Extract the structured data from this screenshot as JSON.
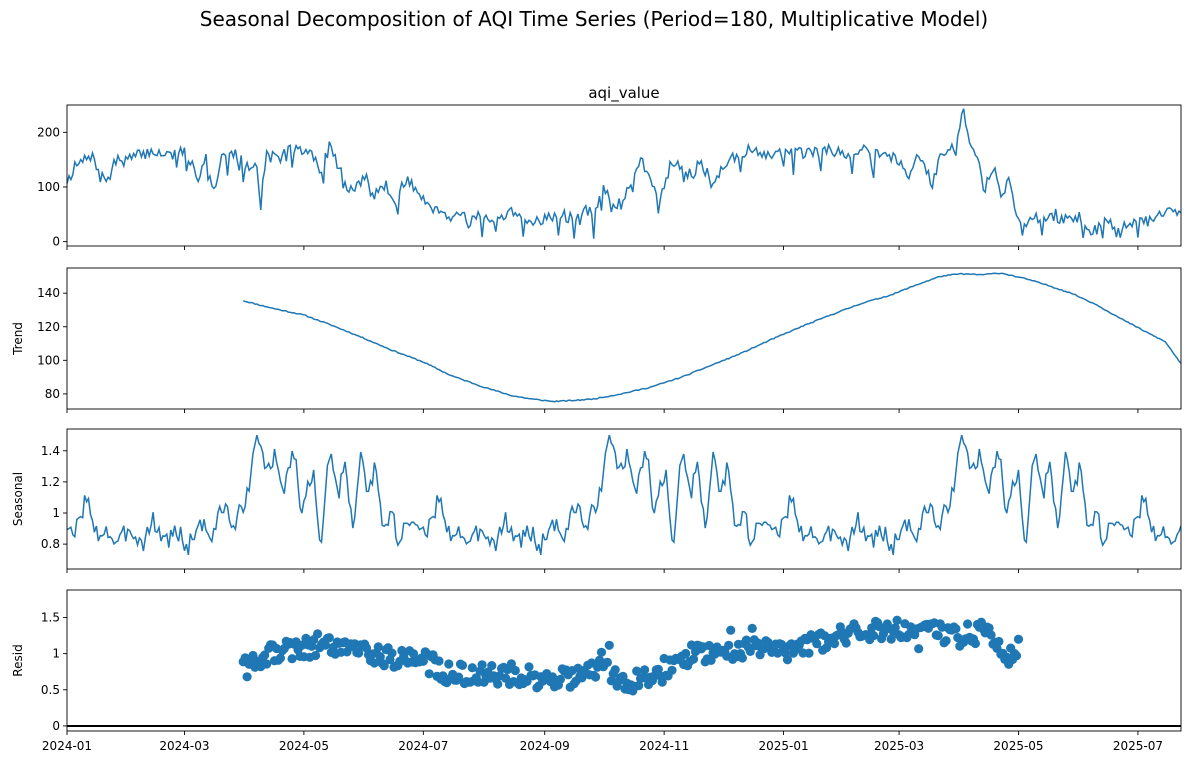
{
  "suptitle": "Seasonal Decomposition of AQI Time Series (Period=180, Multiplicative Model)",
  "line_color": "#1f77b4",
  "zero_line_color": "#000000",
  "chart_data": [
    {
      "type": "line",
      "title": "aqi_value",
      "ylabel": "",
      "xlim": [
        "2024-01-01",
        "2025-07-23"
      ],
      "ylim": [
        -8,
        250
      ],
      "yticks": [
        0,
        100,
        200
      ],
      "grid": false,
      "series": [
        {
          "anchors": [
            [
              "2024-01-01",
              112
            ],
            [
              "2024-01-05",
              135
            ],
            [
              "2024-01-10",
              150
            ],
            [
              "2024-01-15",
              152
            ],
            [
              "2024-01-18",
              118
            ],
            [
              "2024-01-22",
              113
            ],
            [
              "2024-01-26",
              148
            ],
            [
              "2024-02-01",
              150
            ],
            [
              "2024-02-08",
              160
            ],
            [
              "2024-02-15",
              165
            ],
            [
              "2024-02-22",
              158
            ],
            [
              "2024-03-01",
              165
            ],
            [
              "2024-03-05",
              140
            ],
            [
              "2024-03-08",
              118
            ],
            [
              "2024-03-12",
              160
            ],
            [
              "2024-03-16",
              92
            ],
            [
              "2024-03-20",
              162
            ],
            [
              "2024-03-28",
              158
            ],
            [
              "2024-04-02",
              135
            ],
            [
              "2024-04-06",
              150
            ],
            [
              "2024-04-09",
              82
            ],
            [
              "2024-04-12",
              158
            ],
            [
              "2024-04-18",
              152
            ],
            [
              "2024-04-24",
              170
            ],
            [
              "2024-04-30",
              165
            ],
            [
              "2024-05-05",
              162
            ],
            [
              "2024-05-10",
              128
            ],
            [
              "2024-05-14",
              175
            ],
            [
              "2024-05-18",
              145
            ],
            [
              "2024-05-24",
              92
            ],
            [
              "2024-05-28",
              100
            ],
            [
              "2024-06-01",
              120
            ],
            [
              "2024-06-06",
              88
            ],
            [
              "2024-06-12",
              102
            ],
            [
              "2024-06-17",
              72
            ],
            [
              "2024-06-22",
              115
            ],
            [
              "2024-06-28",
              90
            ],
            [
              "2024-07-05",
              65
            ],
            [
              "2024-07-10",
              58
            ],
            [
              "2024-07-15",
              45
            ],
            [
              "2024-07-20",
              52
            ],
            [
              "2024-07-25",
              38
            ],
            [
              "2024-07-30",
              55
            ],
            [
              "2024-08-05",
              28
            ],
            [
              "2024-08-10",
              40
            ],
            [
              "2024-08-15",
              52
            ],
            [
              "2024-08-22",
              35
            ],
            [
              "2024-08-28",
              40
            ],
            [
              "2024-09-03",
              45
            ],
            [
              "2024-09-10",
              52
            ],
            [
              "2024-09-16",
              38
            ],
            [
              "2024-09-22",
              60
            ],
            [
              "2024-09-26",
              45
            ],
            [
              "2024-10-01",
              110
            ],
            [
              "2024-10-05",
              55
            ],
            [
              "2024-10-10",
              80
            ],
            [
              "2024-10-14",
              95
            ],
            [
              "2024-10-20",
              148
            ],
            [
              "2024-10-26",
              110
            ],
            [
              "2024-10-30",
              82
            ],
            [
              "2024-11-05",
              150
            ],
            [
              "2024-11-10",
              140
            ],
            [
              "2024-11-15",
              118
            ],
            [
              "2024-11-20",
              148
            ],
            [
              "2024-11-26",
              100
            ],
            [
              "2024-12-01",
              140
            ],
            [
              "2024-12-08",
              160
            ],
            [
              "2024-12-15",
              168
            ],
            [
              "2024-12-22",
              155
            ],
            [
              "2024-12-29",
              162
            ],
            [
              "2025-01-05",
              165
            ],
            [
              "2025-01-12",
              160
            ],
            [
              "2025-01-19",
              165
            ],
            [
              "2025-01-26",
              168
            ],
            [
              "2025-02-02",
              162
            ],
            [
              "2025-02-09",
              170
            ],
            [
              "2025-02-16",
              165
            ],
            [
              "2025-02-23",
              160
            ],
            [
              "2025-03-01",
              148
            ],
            [
              "2025-03-06",
              122
            ],
            [
              "2025-03-10",
              160
            ],
            [
              "2025-03-14",
              142
            ],
            [
              "2025-03-18",
              98
            ],
            [
              "2025-03-22",
              160
            ],
            [
              "2025-03-26",
              175
            ],
            [
              "2025-03-30",
              160
            ],
            [
              "2025-04-01",
              218
            ],
            [
              "2025-04-03",
              235
            ],
            [
              "2025-04-06",
              180
            ],
            [
              "2025-04-10",
              152
            ],
            [
              "2025-04-14",
              100
            ],
            [
              "2025-04-18",
              138
            ],
            [
              "2025-04-22",
              88
            ],
            [
              "2025-04-26",
              110
            ],
            [
              "2025-04-30",
              48
            ],
            [
              "2025-05-03",
              22
            ],
            [
              "2025-05-08",
              48
            ],
            [
              "2025-05-13",
              30
            ],
            [
              "2025-05-18",
              55
            ],
            [
              "2025-05-24",
              38
            ],
            [
              "2025-06-01",
              45
            ],
            [
              "2025-06-08",
              18
            ],
            [
              "2025-06-15",
              35
            ],
            [
              "2025-06-22",
              30
            ],
            [
              "2025-06-30",
              40
            ],
            [
              "2025-07-08",
              35
            ],
            [
              "2025-07-15",
              55
            ],
            [
              "2025-07-18",
              60
            ],
            [
              "2025-07-23",
              45
            ]
          ]
        }
      ]
    },
    {
      "type": "line",
      "title": "",
      "ylabel": "Trend",
      "xlim": [
        "2024-01-01",
        "2025-07-23"
      ],
      "ylim": [
        71,
        155
      ],
      "yticks": [
        80,
        100,
        120,
        140
      ],
      "grid": false,
      "series": [
        {
          "anchors": [
            [
              "2024-03-31",
              135.5
            ],
            [
              "2024-04-15",
              131
            ],
            [
              "2024-05-01",
              127
            ],
            [
              "2024-05-15",
              121
            ],
            [
              "2024-06-01",
              113
            ],
            [
              "2024-06-15",
              106
            ],
            [
              "2024-07-01",
              99
            ],
            [
              "2024-07-15",
              91
            ],
            [
              "2024-08-01",
              84
            ],
            [
              "2024-08-15",
              79
            ],
            [
              "2024-08-25",
              77
            ],
            [
              "2024-09-05",
              75.5
            ],
            [
              "2024-09-15",
              76
            ],
            [
              "2024-09-26",
              77
            ],
            [
              "2024-10-10",
              80
            ],
            [
              "2024-10-25",
              84
            ],
            [
              "2024-11-10",
              90
            ],
            [
              "2024-11-25",
              97
            ],
            [
              "2024-12-10",
              104
            ],
            [
              "2024-12-25",
              112
            ],
            [
              "2025-01-10",
              120
            ],
            [
              "2025-01-25",
              127
            ],
            [
              "2025-02-10",
              134
            ],
            [
              "2025-02-25",
              139
            ],
            [
              "2025-03-10",
              145
            ],
            [
              "2025-03-22",
              150
            ],
            [
              "2025-04-01",
              151.5
            ],
            [
              "2025-04-12",
              151
            ],
            [
              "2025-04-22",
              152
            ],
            [
              "2025-05-05",
              148.5
            ],
            [
              "2025-05-15",
              145
            ],
            [
              "2025-05-28",
              140
            ],
            [
              "2025-06-10",
              133
            ],
            [
              "2025-06-22",
              125
            ],
            [
              "2025-07-05",
              117
            ],
            [
              "2025-07-15",
              111
            ],
            [
              "2025-07-23",
              98
            ]
          ]
        }
      ]
    },
    {
      "type": "line",
      "title": "",
      "ylabel": "Seasonal",
      "xlim": [
        "2024-01-01",
        "2025-07-23"
      ],
      "ylim": [
        0.64,
        1.54
      ],
      "yticks": [
        0.8,
        1.0,
        1.2,
        1.4
      ],
      "grid": false,
      "period_days": 180,
      "series": [
        {
          "one_period_anchors": [
            [
              0,
              0.93
            ],
            [
              3,
              0.82
            ],
            [
              6,
              0.95
            ],
            [
              10,
              1.12
            ],
            [
              14,
              0.85
            ],
            [
              20,
              0.9
            ],
            [
              26,
              0.78
            ],
            [
              32,
              0.92
            ],
            [
              38,
              0.8
            ],
            [
              44,
              0.95
            ],
            [
              50,
              0.82
            ],
            [
              56,
              0.88
            ],
            [
              62,
              0.78
            ],
            [
              68,
              0.95
            ],
            [
              74,
              0.85
            ],
            [
              80,
              1.05
            ],
            [
              86,
              0.9
            ],
            [
              92,
              1.15
            ],
            [
              98,
              1.5
            ],
            [
              102,
              1.25
            ],
            [
              106,
              1.35
            ],
            [
              110,
              1.15
            ],
            [
              116,
              1.4
            ],
            [
              120,
              1.0
            ],
            [
              126,
              1.3
            ],
            [
              130,
              0.75
            ],
            [
              134,
              1.4
            ],
            [
              138,
              1.1
            ],
            [
              142,
              1.35
            ],
            [
              146,
              0.9
            ],
            [
              150,
              1.38
            ],
            [
              154,
              1.1
            ],
            [
              158,
              1.32
            ],
            [
              162,
              0.85
            ],
            [
              166,
              1.0
            ],
            [
              170,
              0.78
            ],
            [
              174,
              0.95
            ],
            [
              178,
              0.88
            ]
          ]
        }
      ]
    },
    {
      "type": "scatter",
      "title": "",
      "ylabel": "Resid",
      "xlim": [
        "2024-01-01",
        "2025-07-23"
      ],
      "ylim": [
        -0.07,
        1.88
      ],
      "yticks": [
        0.0,
        0.5,
        1.0,
        1.5
      ],
      "hline": 0.0,
      "grid": false,
      "series": [
        {
          "trend_anchors": [
            [
              "2024-03-31",
              0.75
            ],
            [
              "2024-04-15",
              1.0
            ],
            [
              "2024-05-01",
              1.08
            ],
            [
              "2024-05-15",
              1.15
            ],
            [
              "2024-06-01",
              1.05
            ],
            [
              "2024-06-15",
              0.95
            ],
            [
              "2024-07-01",
              0.9
            ],
            [
              "2024-07-15",
              0.72
            ],
            [
              "2024-08-01",
              0.7
            ],
            [
              "2024-08-15",
              0.72
            ],
            [
              "2024-09-01",
              0.65
            ],
            [
              "2024-09-15",
              0.68
            ],
            [
              "2024-10-01",
              0.75
            ],
            [
              "2024-10-15",
              0.62
            ],
            [
              "2024-11-01",
              0.8
            ],
            [
              "2024-11-15",
              1.0
            ],
            [
              "2024-12-01",
              1.05
            ],
            [
              "2024-12-15",
              1.1
            ],
            [
              "2025-01-01",
              1.05
            ],
            [
              "2025-01-15",
              1.15
            ],
            [
              "2025-02-01",
              1.25
            ],
            [
              "2025-02-15",
              1.3
            ],
            [
              "2025-03-01",
              1.35
            ],
            [
              "2025-03-15",
              1.3
            ],
            [
              "2025-04-01",
              1.25
            ],
            [
              "2025-04-15",
              1.3
            ],
            [
              "2025-04-25",
              0.95
            ],
            [
              "2025-05-01",
              1.0
            ]
          ]
        }
      ]
    }
  ],
  "x_axis": {
    "ticks": [
      {
        "date": "2024-01-01",
        "label": "2024-01"
      },
      {
        "date": "2024-03-01",
        "label": "2024-03"
      },
      {
        "date": "2024-05-01",
        "label": "2024-05"
      },
      {
        "date": "2024-07-01",
        "label": "2024-07"
      },
      {
        "date": "2024-09-01",
        "label": "2024-09"
      },
      {
        "date": "2024-11-01",
        "label": "2024-11"
      },
      {
        "date": "2025-01-01",
        "label": "2025-01"
      },
      {
        "date": "2025-03-01",
        "label": "2025-03"
      },
      {
        "date": "2025-05-01",
        "label": "2025-05"
      },
      {
        "date": "2025-07-01",
        "label": "2025-07"
      }
    ]
  }
}
